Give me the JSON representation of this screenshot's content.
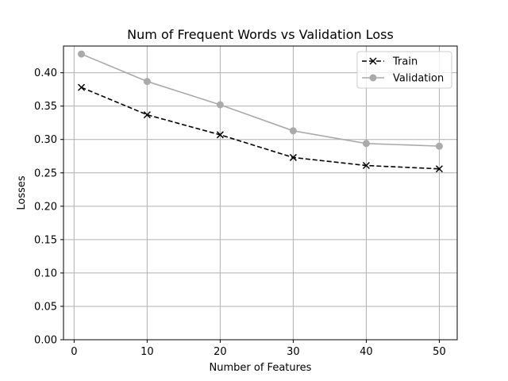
{
  "chart_data": {
    "type": "line",
    "title": "Num of Frequent Words vs Validation Loss",
    "xlabel": "Number of Features",
    "ylabel": "Losses",
    "xlim": [
      -1.45,
      52.45
    ],
    "ylim": [
      0.0,
      0.44
    ],
    "x_ticks": [
      0,
      10,
      20,
      30,
      40,
      50
    ],
    "y_ticks": [
      0.0,
      0.05,
      0.1,
      0.15,
      0.2,
      0.25,
      0.3,
      0.35,
      0.4
    ],
    "x_tick_labels": [
      "0",
      "10",
      "20",
      "30",
      "40",
      "50"
    ],
    "y_tick_labels": [
      "0.00",
      "0.05",
      "0.10",
      "0.15",
      "0.20",
      "0.25",
      "0.30",
      "0.35",
      "0.40"
    ],
    "grid": true,
    "legend_position": "top-right",
    "x": [
      1,
      10,
      20,
      30,
      40,
      50
    ],
    "series": [
      {
        "name": "Train",
        "values": [
          0.378,
          0.337,
          0.307,
          0.273,
          0.261,
          0.256
        ],
        "color": "#000000",
        "line_style": "dashed",
        "marker": "x"
      },
      {
        "name": "Validation",
        "values": [
          0.428,
          0.387,
          0.352,
          0.313,
          0.294,
          0.29
        ],
        "color": "#aaaaaa",
        "line_style": "solid",
        "marker": "circle"
      }
    ]
  }
}
